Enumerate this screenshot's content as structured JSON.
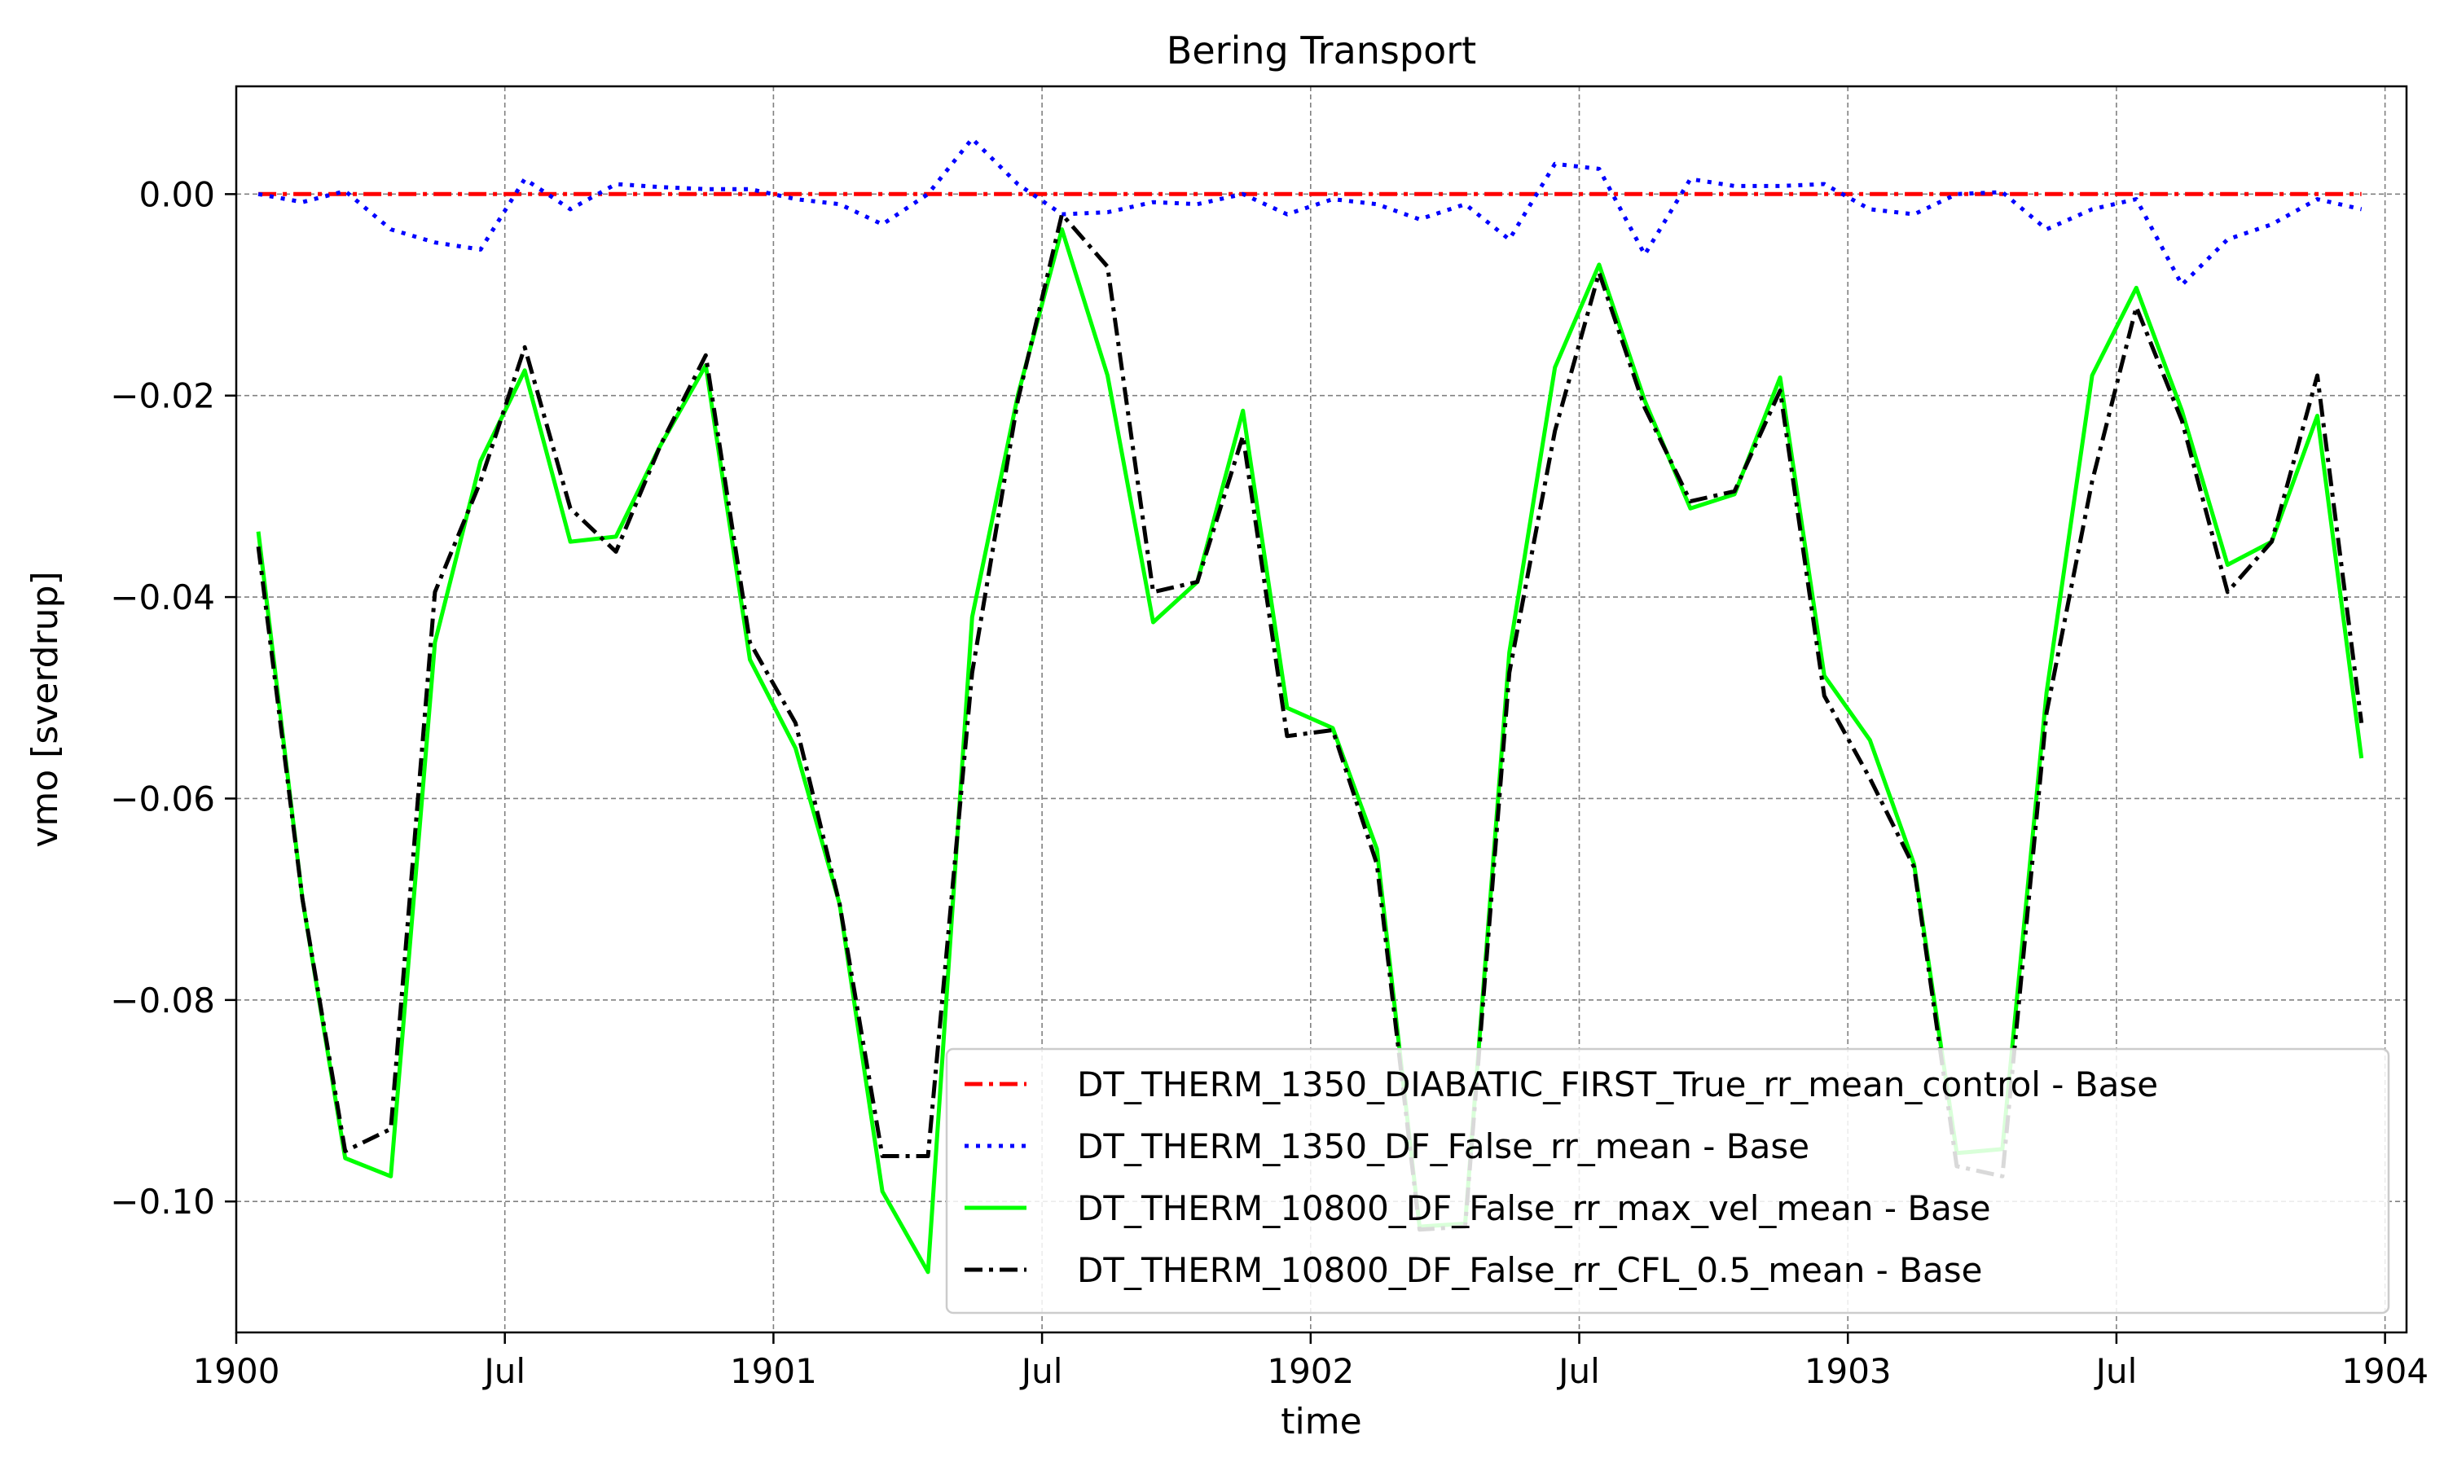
{
  "chart_data": {
    "type": "line",
    "title": "Bering Transport",
    "xlabel": "time",
    "ylabel": "vmo [sverdrup]",
    "x_ticks": [
      {
        "label": "1900",
        "t": 1900.0
      },
      {
        "label": "Jul",
        "t": 1900.5
      },
      {
        "label": "1901",
        "t": 1901.0
      },
      {
        "label": "Jul",
        "t": 1901.5
      },
      {
        "label": "1902",
        "t": 1902.0
      },
      {
        "label": "Jul",
        "t": 1902.5
      },
      {
        "label": "1903",
        "t": 1903.0
      },
      {
        "label": "Jul",
        "t": 1903.5
      },
      {
        "label": "1904",
        "t": 1904.0
      }
    ],
    "y_ticks": [
      "0.00",
      "−0.02",
      "−0.04",
      "−0.06",
      "−0.08",
      "−0.10"
    ],
    "y_tick_values": [
      0.0,
      -0.02,
      -0.04,
      -0.06,
      -0.08,
      -0.1
    ],
    "xlim": [
      1900.0,
      1904.04
    ],
    "ylim": [
      -0.113,
      0.0107
    ],
    "grid": true,
    "legend_position": "lower-right",
    "x_dates": [
      "1900-01-16",
      "1900-02-15",
      "1900-03-16",
      "1900-04-16",
      "1900-05-16",
      "1900-06-16",
      "1900-07-16",
      "1900-08-16",
      "1900-09-16",
      "1900-10-16",
      "1900-11-16",
      "1900-12-16",
      "1901-01-16",
      "1901-02-15",
      "1901-03-16",
      "1901-04-16",
      "1901-05-16",
      "1901-06-16",
      "1901-07-16",
      "1901-08-16",
      "1901-09-16",
      "1901-10-16",
      "1901-11-16",
      "1901-12-16",
      "1902-01-16",
      "1902-02-15",
      "1902-03-16",
      "1902-04-16",
      "1902-05-16",
      "1902-06-16",
      "1902-07-16",
      "1902-08-16",
      "1902-09-16",
      "1902-10-16",
      "1902-11-16",
      "1902-12-16",
      "1903-01-16",
      "1903-02-15",
      "1903-03-16",
      "1903-04-16",
      "1903-05-16",
      "1903-06-16",
      "1903-07-16",
      "1903-08-16",
      "1903-09-16",
      "1903-10-16",
      "1903-11-16",
      "1903-12-16"
    ],
    "series": [
      {
        "name": "DT_THERM_1350_DIABATIC_FIRST_True_rr_mean_control - Base",
        "color": "#ff0000",
        "style": "dashdot",
        "values": [
          0,
          0,
          0,
          0,
          0,
          0,
          0,
          0,
          0,
          0,
          0,
          0,
          0,
          0,
          0,
          0,
          0,
          0,
          0,
          0,
          0,
          0,
          0,
          0,
          0,
          0,
          0,
          0,
          0,
          0,
          0,
          0,
          0,
          0,
          0,
          0,
          0,
          0,
          0,
          0,
          0,
          0,
          0,
          0,
          0,
          0,
          0,
          0
        ]
      },
      {
        "name": "DT_THERM_1350_DF_False_rr_mean - Base",
        "color": "#0000ff",
        "style": "dotted",
        "values": [
          0.0,
          -0.0008,
          0.0003,
          -0.0035,
          -0.0048,
          -0.0055,
          0.0015,
          -0.0015,
          0.001,
          0.0007,
          0.0005,
          0.0005,
          -0.0005,
          -0.001,
          -0.003,
          0.0,
          0.0055,
          0.001,
          -0.002,
          -0.0018,
          -0.0008,
          -0.001,
          0.0,
          -0.002,
          -0.0005,
          -0.001,
          -0.0025,
          -0.001,
          -0.0045,
          0.003,
          0.0025,
          -0.006,
          0.0015,
          0.0008,
          0.0008,
          0.001,
          -0.0015,
          -0.002,
          0.0,
          0.0002,
          -0.0035,
          -0.0015,
          -0.0005,
          -0.009,
          -0.0045,
          -0.003,
          -0.0005,
          -0.0015
        ]
      },
      {
        "name": "DT_THERM_10800_DF_False_rr_max_vel_mean - Base",
        "color": "#00ff00",
        "style": "solid",
        "values": [
          -0.0335,
          -0.07,
          -0.0957,
          -0.0975,
          -0.0445,
          -0.0265,
          -0.0175,
          -0.0345,
          -0.034,
          -0.025,
          -0.017,
          -0.0462,
          -0.055,
          -0.0705,
          -0.099,
          -0.107,
          -0.042,
          -0.02,
          -0.0035,
          -0.018,
          -0.0425,
          -0.0385,
          -0.0215,
          -0.051,
          -0.053,
          -0.065,
          -0.1025,
          -0.1022,
          -0.0455,
          -0.0172,
          -0.007,
          -0.0205,
          -0.0312,
          -0.0298,
          -0.0182,
          -0.0478,
          -0.0542,
          -0.0665,
          -0.0952,
          -0.0948,
          -0.0495,
          -0.018,
          -0.0093,
          -0.0215,
          -0.0368,
          -0.0345,
          -0.022,
          -0.056
        ]
      },
      {
        "name": "DT_THERM_10800_DF_False_rr_CFL_0.5_mean - Base",
        "color": "#000000",
        "style": "dashdot",
        "values": [
          -0.035,
          -0.07,
          -0.095,
          -0.0928,
          -0.0395,
          -0.0285,
          -0.0152,
          -0.0312,
          -0.0355,
          -0.025,
          -0.016,
          -0.0445,
          -0.0525,
          -0.0705,
          -0.0955,
          -0.0955,
          -0.0475,
          -0.0205,
          -0.002,
          -0.0072,
          -0.0395,
          -0.0385,
          -0.024,
          -0.0538,
          -0.0532,
          -0.0665,
          -0.1028,
          -0.1025,
          -0.0475,
          -0.0235,
          -0.0078,
          -0.0212,
          -0.0305,
          -0.0295,
          -0.0195,
          -0.0498,
          -0.058,
          -0.0668,
          -0.0965,
          -0.0975,
          -0.0515,
          -0.0285,
          -0.0112,
          -0.0225,
          -0.0395,
          -0.0345,
          -0.018,
          -0.0525
        ]
      }
    ]
  }
}
